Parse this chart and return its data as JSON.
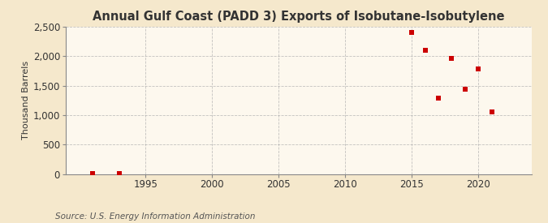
{
  "title": "Annual Gulf Coast (PADD 3) Exports of Isobutane-Isobutylene",
  "ylabel": "Thousand Barrels",
  "source": "Source: U.S. Energy Information Administration",
  "background_color": "#f5e8cc",
  "plot_background_color": "#fdf8ee",
  "data_points": [
    [
      1991,
      2
    ],
    [
      1993,
      3
    ],
    [
      2015,
      2410
    ],
    [
      2016,
      2100
    ],
    [
      2017,
      1290
    ],
    [
      2018,
      1960
    ],
    [
      2019,
      1440
    ],
    [
      2020,
      1790
    ],
    [
      2021,
      1060
    ]
  ],
  "marker_color": "#cc0000",
  "marker_size": 4,
  "xlim": [
    1989,
    2024
  ],
  "ylim": [
    0,
    2500
  ],
  "yticks": [
    0,
    500,
    1000,
    1500,
    2000,
    2500
  ],
  "ytick_labels": [
    "0",
    "500",
    "1,000",
    "1,500",
    "2,000",
    "2,500"
  ],
  "xticks": [
    1995,
    2000,
    2005,
    2010,
    2015,
    2020
  ],
  "grid_color": "#aaaaaa",
  "title_fontsize": 10.5,
  "tick_fontsize": 8.5,
  "ylabel_fontsize": 8,
  "source_fontsize": 7.5
}
